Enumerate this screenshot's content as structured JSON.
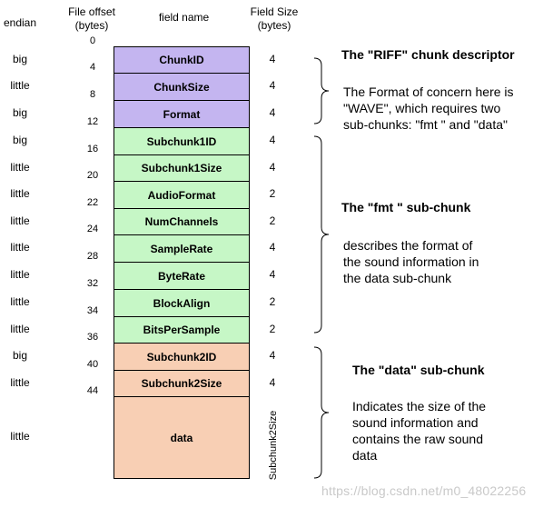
{
  "headers": {
    "endian": "endian",
    "offset_line1": "File offset",
    "offset_line2": "(bytes)",
    "field": "field name",
    "size_line1": "Field Size",
    "size_line2": "(bytes)"
  },
  "fields": [
    {
      "name": "ChunkID",
      "endian": "big",
      "offset": "0",
      "size": "4",
      "group": "riff"
    },
    {
      "name": "ChunkSize",
      "endian": "little",
      "offset": "4",
      "size": "4",
      "group": "riff"
    },
    {
      "name": "Format",
      "endian": "big",
      "offset": "8",
      "size": "4",
      "group": "riff"
    },
    {
      "name": "Subchunk1ID",
      "endian": "big",
      "offset": "12",
      "size": "4",
      "group": "fmt"
    },
    {
      "name": "Subchunk1Size",
      "endian": "little",
      "offset": "16",
      "size": "4",
      "group": "fmt"
    },
    {
      "name": "AudioFormat",
      "endian": "little",
      "offset": "20",
      "size": "2",
      "group": "fmt"
    },
    {
      "name": "NumChannels",
      "endian": "little",
      "offset": "22",
      "size": "2",
      "group": "fmt"
    },
    {
      "name": "SampleRate",
      "endian": "little",
      "offset": "24",
      "size": "4",
      "group": "fmt"
    },
    {
      "name": "ByteRate",
      "endian": "little",
      "offset": "28",
      "size": "4",
      "group": "fmt"
    },
    {
      "name": "BlockAlign",
      "endian": "little",
      "offset": "32",
      "size": "2",
      "group": "fmt"
    },
    {
      "name": "BitsPerSample",
      "endian": "little",
      "offset": "34",
      "size": "2",
      "group": "fmt"
    },
    {
      "name": "Subchunk2ID",
      "endian": "big",
      "offset": "36",
      "size": "4",
      "group": "data"
    },
    {
      "name": "Subchunk2Size",
      "endian": "little",
      "offset": "40",
      "size": "4",
      "group": "data"
    },
    {
      "name": "data",
      "endian": "little",
      "offset": "44",
      "size": "Subchunk2Size",
      "group": "data"
    }
  ],
  "groups": {
    "riff": {
      "color": "#c4b5f0",
      "title": "The \"RIFF\" chunk descriptor",
      "description": [
        "The Format of concern here is",
        "\"WAVE\", which requires two",
        "sub-chunks: \"fmt \" and \"data\""
      ]
    },
    "fmt": {
      "color": "#c6f7c6",
      "title": "The \"fmt \" sub-chunk",
      "description": [
        "describes the format of",
        "the sound information in",
        "the data sub-chunk"
      ]
    },
    "data": {
      "color": "#f8cfb4",
      "title": "The \"data\" sub-chunk",
      "description": [
        "Indicates the size of the",
        "sound information and",
        "contains the raw sound",
        "data"
      ]
    }
  },
  "watermark": "https://blog.csdn.net/m0_48022256"
}
